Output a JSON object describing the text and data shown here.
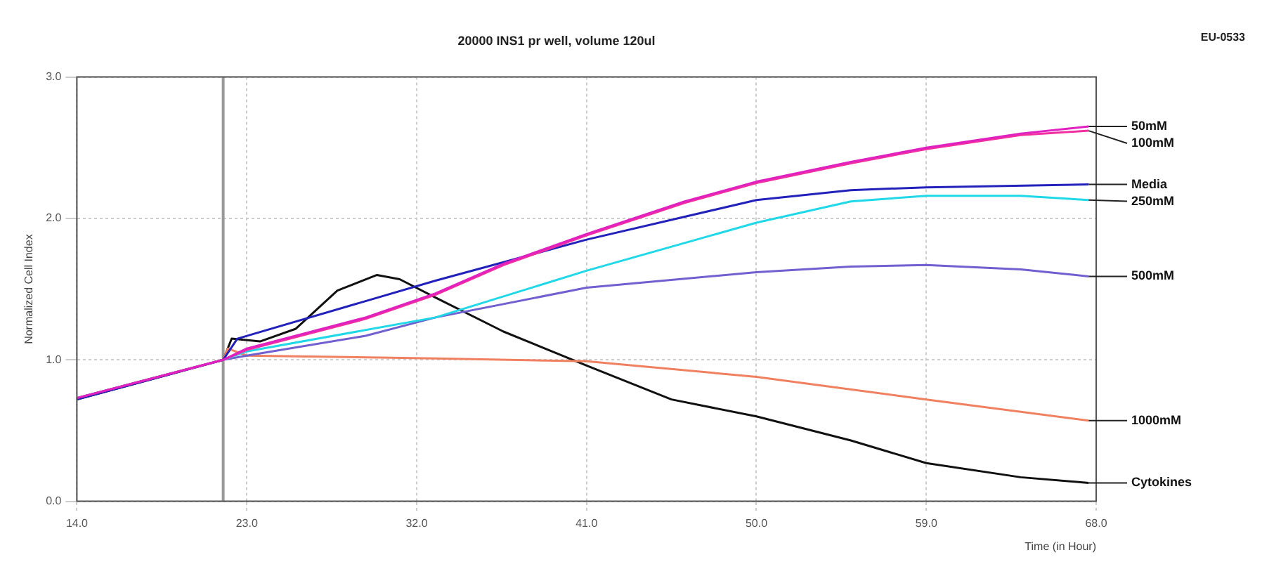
{
  "chart_data": {
    "type": "line",
    "title": "20000 INS1 pr well, volume 120ul",
    "xlabel": "Time (in Hour)",
    "ylabel": "Normalized Cell Index",
    "annotations": [
      "EU-0533"
    ],
    "xlim": [
      14,
      68
    ],
    "xticks": [
      {
        "value": 14,
        "label": "14.0"
      },
      {
        "value": 23,
        "label": "23.0"
      },
      {
        "value": 32,
        "label": "32.0"
      },
      {
        "value": 41,
        "label": "41.0"
      },
      {
        "value": 50,
        "label": "50.0"
      },
      {
        "value": 59,
        "label": "59.0"
      },
      {
        "value": 68,
        "label": "68.0"
      }
    ],
    "ylim": [
      0,
      3
    ],
    "yticks": [
      {
        "value": 0,
        "label": "0.0"
      },
      {
        "value": 1,
        "label": "1.0"
      },
      {
        "value": 2,
        "label": "2.0"
      },
      {
        "value": 3,
        "label": "3.0"
      }
    ],
    "grid": true,
    "legend": false,
    "marker": "none",
    "line_style": "solid",
    "ref_lines": [
      {
        "axis": "x",
        "value": 21.75,
        "color": "#999999"
      }
    ],
    "series": [
      {
        "name": "50mM",
        "color": "#e020c0",
        "x": [
          14,
          21.75,
          23,
          29.3,
          33,
          36.6,
          41,
          46.2,
          50,
          55,
          59,
          64,
          67.6
        ],
        "values": [
          0.73,
          1.0,
          1.08,
          1.3,
          1.47,
          1.68,
          1.89,
          2.12,
          2.26,
          2.4,
          2.5,
          2.6,
          2.65
        ]
      },
      {
        "name": "100mM",
        "color": "#f030a0",
        "x": [
          14,
          21.75,
          23,
          29.3,
          33,
          36.6,
          41,
          46.2,
          50,
          55,
          59,
          64,
          67.6
        ],
        "values": [
          0.73,
          1.0,
          1.07,
          1.29,
          1.46,
          1.67,
          1.88,
          2.11,
          2.25,
          2.39,
          2.49,
          2.59,
          2.62
        ]
      },
      {
        "name": "Media",
        "color": "#2222bb",
        "x": [
          14,
          21.75,
          22.5,
          33,
          41,
          50,
          55,
          59,
          67.6
        ],
        "values": [
          0.72,
          1.0,
          1.15,
          1.56,
          1.85,
          2.13,
          2.2,
          2.22,
          2.24
        ]
      },
      {
        "name": "250mM",
        "color": "#20d8e8",
        "x": [
          14,
          21.75,
          23,
          33,
          41,
          50,
          55,
          59,
          64,
          67.6
        ],
        "values": [
          0.73,
          1.0,
          1.06,
          1.3,
          1.63,
          1.97,
          2.12,
          2.16,
          2.16,
          2.13
        ]
      },
      {
        "name": "500mM",
        "color": "#7060d0",
        "x": [
          14,
          21.75,
          23,
          29.3,
          33,
          41,
          50,
          55,
          59,
          64,
          67.6
        ],
        "values": [
          0.73,
          1.0,
          1.03,
          1.17,
          1.3,
          1.51,
          1.62,
          1.66,
          1.67,
          1.64,
          1.59
        ]
      },
      {
        "name": "1000mM",
        "color": "#f08060",
        "x": [
          14,
          21.75,
          22,
          23,
          33,
          41,
          50,
          59,
          67.6
        ],
        "values": [
          0.73,
          1.0,
          1.08,
          1.03,
          1.01,
          0.99,
          0.88,
          0.72,
          0.57
        ]
      },
      {
        "name": "Cytokines",
        "color": "#111111",
        "x": [
          14,
          21.75,
          22.2,
          23.7,
          25.6,
          27.8,
          29.9,
          31.1,
          33,
          36.6,
          41,
          45.5,
          50,
          55,
          59,
          64,
          67.6
        ],
        "values": [
          0.72,
          1.0,
          1.15,
          1.13,
          1.22,
          1.49,
          1.6,
          1.57,
          1.44,
          1.2,
          0.96,
          0.72,
          0.6,
          0.43,
          0.27,
          0.17,
          0.13
        ]
      }
    ]
  }
}
